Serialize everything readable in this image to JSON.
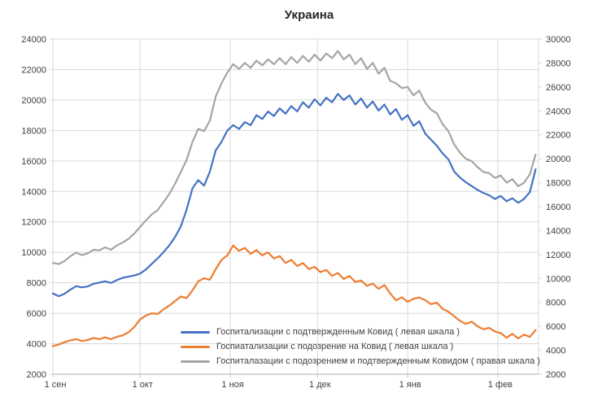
{
  "title": "Украина",
  "chart_data": {
    "type": "line",
    "title": "Украина",
    "grid": true,
    "legend_position": "inside-bottom",
    "x_unit": "days since 1 Sep (daily series, sampled every 2 days)",
    "x_ticks": [
      {
        "day": 0,
        "label": "1 сен"
      },
      {
        "day": 30,
        "label": "1 окт"
      },
      {
        "day": 61,
        "label": "1 ноя"
      },
      {
        "day": 91,
        "label": "1 дек"
      },
      {
        "day": 122,
        "label": "1 янв"
      },
      {
        "day": 153,
        "label": "1 фев"
      }
    ],
    "left_axis": {
      "min": 2000,
      "max": 24000,
      "step": 2000,
      "ticks": [
        24000,
        22000,
        20000,
        18000,
        16000,
        14000,
        12000,
        10000,
        8000,
        6000,
        4000,
        2000
      ]
    },
    "right_axis": {
      "min": 2000,
      "max": 30000,
      "step": 2000,
      "ticks": [
        30000,
        28000,
        26000,
        24000,
        22000,
        20000,
        18000,
        16000,
        14000,
        12000,
        10000,
        8000,
        6000,
        4000,
        2000
      ]
    },
    "days": [
      0,
      2,
      4,
      6,
      8,
      10,
      12,
      14,
      16,
      18,
      20,
      22,
      24,
      26,
      28,
      30,
      32,
      34,
      36,
      38,
      40,
      42,
      44,
      46,
      48,
      50,
      52,
      54,
      56,
      58,
      60,
      62,
      64,
      66,
      68,
      70,
      72,
      74,
      76,
      78,
      80,
      82,
      84,
      86,
      88,
      90,
      92,
      94,
      96,
      98,
      100,
      102,
      104,
      106,
      108,
      110,
      112,
      114,
      116,
      118,
      120,
      122,
      124,
      126,
      128,
      130,
      132,
      134,
      136,
      138,
      140,
      142,
      144,
      146,
      148,
      150,
      152,
      154,
      156,
      158,
      160,
      162,
      164,
      166
    ],
    "series": [
      {
        "name": "Госпитализации с подтвержденным Ковид ( левая шкала )",
        "axis": "left",
        "color": "#4472C4",
        "values": [
          7300,
          7120,
          7280,
          7550,
          7780,
          7700,
          7760,
          7930,
          8020,
          8100,
          7990,
          8180,
          8330,
          8400,
          8480,
          8600,
          8880,
          9240,
          9600,
          10000,
          10450,
          11000,
          11700,
          12800,
          14200,
          14740,
          14380,
          15300,
          16700,
          17250,
          18000,
          18350,
          18100,
          18550,
          18350,
          19000,
          18750,
          19250,
          18950,
          19450,
          19100,
          19600,
          19250,
          19850,
          19500,
          20050,
          19650,
          20150,
          19850,
          20400,
          20000,
          20300,
          19700,
          20100,
          19500,
          19900,
          19300,
          19700,
          19050,
          19400,
          18700,
          19000,
          18300,
          18600,
          17800,
          17400,
          17000,
          16500,
          16100,
          15300,
          14900,
          14600,
          14350,
          14100,
          13900,
          13750,
          13500,
          13700,
          13350,
          13550,
          13250,
          13500,
          13950,
          15450
        ]
      },
      {
        "name": "Госпиатализации с подозрение на Ковид ( левая шкала )",
        "axis": "left",
        "color": "#ED7D31",
        "values": [
          3850,
          3950,
          4100,
          4220,
          4300,
          4180,
          4250,
          4380,
          4300,
          4420,
          4300,
          4450,
          4550,
          4750,
          5100,
          5600,
          5850,
          6000,
          5950,
          6250,
          6500,
          6800,
          7100,
          7000,
          7500,
          8100,
          8300,
          8200,
          8900,
          9500,
          9800,
          10450,
          10100,
          10300,
          9900,
          10150,
          9800,
          10000,
          9600,
          9750,
          9300,
          9500,
          9100,
          9300,
          8900,
          9050,
          8700,
          8850,
          8450,
          8650,
          8250,
          8450,
          8050,
          8150,
          7800,
          7950,
          7600,
          7850,
          7300,
          6850,
          7050,
          6750,
          6950,
          7040,
          6860,
          6600,
          6700,
          6300,
          6100,
          5800,
          5500,
          5300,
          5450,
          5150,
          4950,
          5050,
          4800,
          4700,
          4400,
          4650,
          4350,
          4600,
          4450,
          4900
        ]
      },
      {
        "name": "Госпиталазации с подозрением и подтвержденным Ковидом ( правая шкала )",
        "axis": "right",
        "color": "#A5A5A5",
        "values": [
          11300,
          11200,
          11450,
          11850,
          12150,
          11950,
          12100,
          12400,
          12350,
          12600,
          12400,
          12750,
          13000,
          13300,
          13750,
          14300,
          14850,
          15350,
          15700,
          16350,
          17050,
          17900,
          18900,
          19900,
          21400,
          22500,
          22300,
          23200,
          25200,
          26300,
          27200,
          27900,
          27500,
          28000,
          27600,
          28200,
          27800,
          28300,
          27900,
          28400,
          27900,
          28500,
          28000,
          28600,
          28100,
          28700,
          28200,
          28800,
          28400,
          29000,
          28300,
          28700,
          27900,
          28400,
          27500,
          28000,
          27100,
          27600,
          26500,
          26300,
          25900,
          26000,
          25300,
          25700,
          24700,
          24100,
          23800,
          22900,
          22300,
          21200,
          20500,
          20000,
          19800,
          19300,
          18900,
          18800,
          18400,
          18600,
          18000,
          18300,
          17700,
          18000,
          18700,
          20350
        ]
      }
    ],
    "colors": {
      "grid": "#D9D9D9",
      "axis_line": "#BFBFBF",
      "tick_text": "#404040",
      "title_text": "#262626"
    }
  }
}
